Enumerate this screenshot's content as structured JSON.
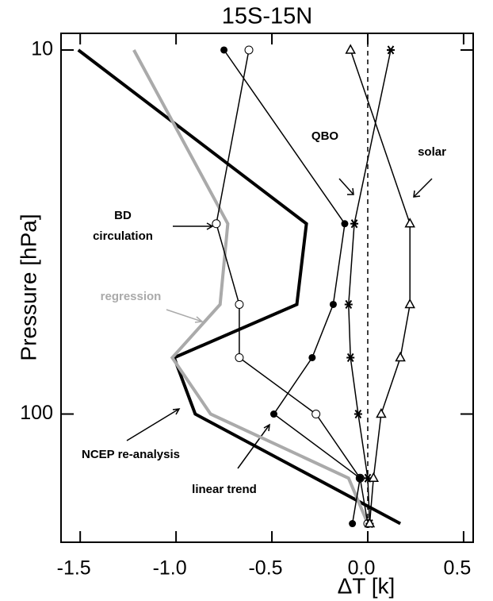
{
  "chart_data": {
    "type": "line",
    "title": "15S-15N",
    "x_label": "ΔT [k]",
    "y_label": "Pressure [hPa]",
    "y_log": true,
    "y_inverted": true,
    "xlim": [
      -1.6,
      0.55
    ],
    "ylim": [
      9,
      225
    ],
    "xticks": [
      -1.5,
      {
        "value": -1,
        "label": "-1.0"
      },
      -0.5,
      {
        "value": 0,
        "label": "0.0"
      },
      0.5
    ],
    "yticks": [
      10,
      100
    ],
    "zero_line_x": 0,
    "y": [
      10,
      30,
      50,
      70,
      100,
      150,
      200
    ],
    "series": [
      {
        "color": "#000000",
        "marker": "none",
        "width": 4,
        "values": [
          -1.51,
          -0.32,
          -0.37,
          -1.01,
          -0.9,
          null,
          0.17
        ]
      },
      {
        "color": "#aaaaaa",
        "marker": "none",
        "width": 4,
        "values": [
          -1.22,
          -0.73,
          -0.77,
          -1.02,
          -0.82,
          -0.1,
          0
        ]
      },
      {
        "color": "#000000",
        "marker": "open-circle",
        "width": 1.5,
        "values": [
          -0.62,
          -0.79,
          -0.67,
          -0.67,
          -0.27,
          -0.04,
          0
        ]
      },
      {
        "color": "#000000",
        "marker": "dot",
        "width": 1.5,
        "values": [
          -0.75,
          -0.12,
          -0.18,
          -0.29,
          -0.49,
          -0.04,
          -0.08
        ]
      },
      {
        "color": "#000000",
        "marker": "asterisk",
        "width": 1.5,
        "values": [
          0.12,
          -0.07,
          -0.1,
          -0.09,
          -0.05,
          0,
          0.01
        ]
      },
      {
        "color": "#000000",
        "marker": "triangle",
        "width": 1.5,
        "values": [
          -0.09,
          0.22,
          0.22,
          0.17,
          0.07,
          0.03,
          0.01
        ]
      }
    ],
    "annotations": [
      "QBO",
      "solar",
      "BD",
      "circulation",
      "regression",
      "NCEP re-analysis",
      "linear trend"
    ]
  }
}
